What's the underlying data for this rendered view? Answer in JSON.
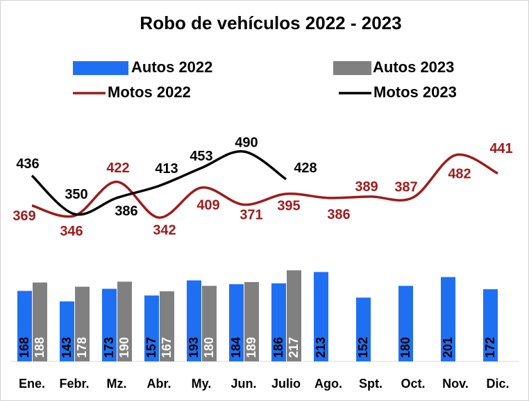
{
  "chart_data": {
    "type": "bar",
    "title": "Robo de vehículos 2022 - 2023",
    "categories": [
      "Ene.",
      "Febr.",
      "Mz.",
      "Abr.",
      "My.",
      "Jun.",
      "Julio",
      "Ago.",
      "Spt.",
      "Oct.",
      "Nov.",
      "Dic."
    ],
    "ylim": [
      0,
      530
    ],
    "y2lim": [
      20,
      518
    ],
    "series": [
      {
        "name": "Autos 2022",
        "type": "bar",
        "color": "#1f6ff2",
        "values": [
          168,
          143,
          173,
          157,
          193,
          184,
          186,
          213,
          152,
          180,
          201,
          172
        ]
      },
      {
        "name": "Autos 2023",
        "type": "bar",
        "color": "#808080",
        "values": [
          188,
          178,
          190,
          167,
          180,
          189,
          217,
          null,
          null,
          null,
          null,
          null
        ]
      },
      {
        "name": "Motos 2022",
        "type": "line",
        "axis": "y2",
        "color": "#9e1b1b",
        "values": [
          369,
          346,
          422,
          342,
          409,
          371,
          395,
          386,
          389,
          387,
          482,
          441
        ]
      },
      {
        "name": "Motos 2023",
        "type": "line",
        "axis": "y2",
        "color": "#000000",
        "values": [
          436,
          350,
          386,
          413,
          453,
          490,
          428,
          null,
          null,
          null,
          null,
          null
        ]
      }
    ]
  }
}
